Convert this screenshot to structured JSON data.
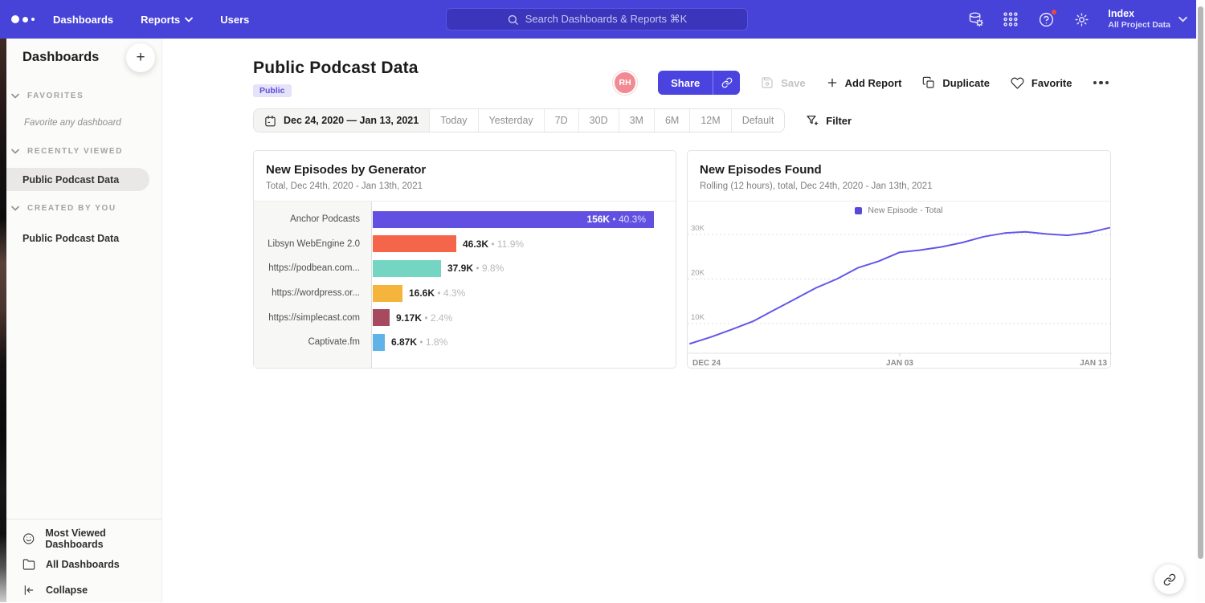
{
  "navbar": {
    "menu": [
      "Dashboards",
      "Reports",
      "Users"
    ],
    "search_placeholder": "Search Dashboards & Reports ⌘K",
    "workspace": {
      "name": "Index",
      "subtitle": "All Project Data"
    }
  },
  "sidebar": {
    "title": "Dashboards",
    "sections": [
      {
        "label": "FAVORITES",
        "empty": "Favorite any dashboard"
      },
      {
        "label": "RECENTLY VIEWED",
        "items": [
          "Public Podcast Data"
        ]
      },
      {
        "label": "CREATED BY YOU",
        "items": [
          "Public Podcast Data"
        ]
      }
    ],
    "footer": [
      "Most Viewed Dashboards",
      "All Dashboards",
      "Collapse"
    ]
  },
  "header": {
    "title": "Public Podcast Data",
    "badge": "Public",
    "avatar": "RH",
    "actions": {
      "share": "Share",
      "save": "Save",
      "add_report": "Add Report",
      "duplicate": "Duplicate",
      "favorite": "Favorite"
    }
  },
  "datebar": {
    "range": "Dec 24, 2020 — Jan 13, 2021",
    "presets": [
      "Today",
      "Yesterday",
      "7D",
      "30D",
      "3M",
      "6M",
      "12M",
      "Default"
    ],
    "filter": "Filter"
  },
  "chart_data": [
    {
      "type": "bar",
      "orientation": "horizontal",
      "title": "New Episodes by Generator",
      "subtitle": "Total, Dec 24th, 2020 - Jan 13th, 2021",
      "categories": [
        "Anchor Podcasts",
        "Libsyn WebEngine 2.0",
        "https://podbean.com...",
        "https://wordpress.or...",
        "https://simplecast.com",
        "Captivate.fm"
      ],
      "values": [
        156000,
        46300,
        37900,
        16600,
        9170,
        6870
      ],
      "value_labels": [
        "156K",
        "46.3K",
        "37.9K",
        "16.6K",
        "9.17K",
        "6.87K"
      ],
      "pct_labels": [
        "40.3%",
        "11.9%",
        "9.8%",
        "4.3%",
        "2.4%",
        "1.8%"
      ],
      "colors": [
        "#6150e1",
        "#f4654a",
        "#74d6c2",
        "#f5b43c",
        "#a64a60",
        "#5fb3e8"
      ]
    },
    {
      "type": "line",
      "title": "New Episodes Found",
      "subtitle": "Rolling (12 hours), total, Dec 24th, 2020 - Jan 13th, 2021",
      "legend": [
        "New Episode - Total"
      ],
      "line_color": "#6457e8",
      "legend_color": "#5748d9",
      "x_ticks": [
        "DEC 24",
        "JAN 03",
        "JAN 13"
      ],
      "y_ticks": [
        "10K",
        "20K",
        "30K"
      ],
      "y_tick_values": [
        10000,
        20000,
        30000
      ],
      "ylim": [
        0,
        33000
      ],
      "x": [
        "Dec 24",
        "Dec 25",
        "Dec 26",
        "Dec 27",
        "Dec 28",
        "Dec 29",
        "Dec 30",
        "Dec 31",
        "Jan 01",
        "Jan 02",
        "Jan 03",
        "Jan 04",
        "Jan 05",
        "Jan 06",
        "Jan 07",
        "Jan 08",
        "Jan 09",
        "Jan 10",
        "Jan 11",
        "Jan 12",
        "Jan 13"
      ],
      "values": [
        5500,
        7000,
        8700,
        10500,
        13000,
        15500,
        18000,
        20000,
        22500,
        24000,
        26000,
        26500,
        27200,
        28200,
        29500,
        30300,
        30600,
        30100,
        29800,
        30400,
        31500
      ],
      "grid": true,
      "legend_position": "top-center"
    }
  ]
}
